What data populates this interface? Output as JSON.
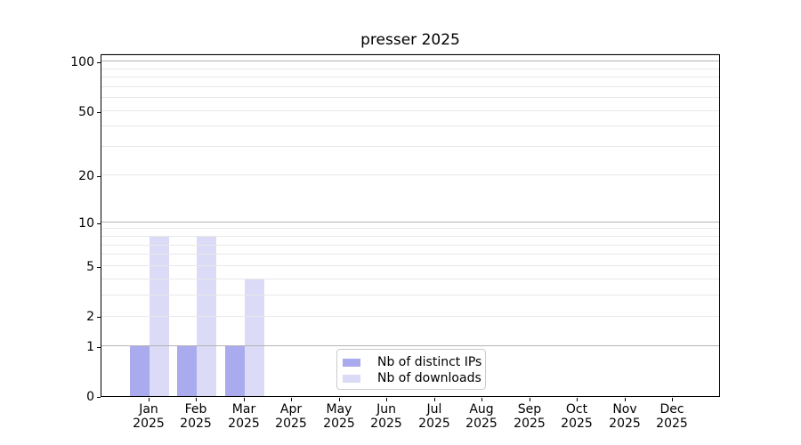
{
  "chart_data": {
    "type": "bar",
    "title": "presser 2025",
    "categories": [
      "Jan",
      "Feb",
      "Mar",
      "Apr",
      "May",
      "Jun",
      "Jul",
      "Aug",
      "Sep",
      "Oct",
      "Nov",
      "Dec"
    ],
    "x_tick_labels": [
      [
        "Jan",
        "2025"
      ],
      [
        "Feb",
        "2025"
      ],
      [
        "Mar",
        "2025"
      ],
      [
        "Apr",
        "2025"
      ],
      [
        "May",
        "2025"
      ],
      [
        "Jun",
        "2025"
      ],
      [
        "Jul",
        "2025"
      ],
      [
        "Aug",
        "2025"
      ],
      [
        "Sep",
        "2025"
      ],
      [
        "Oct",
        "2025"
      ],
      [
        "Nov",
        "2025"
      ],
      [
        "Dec",
        "2025"
      ]
    ],
    "series": [
      {
        "name": "Nb of distinct IPs",
        "color": "#aaaaee",
        "values": [
          1,
          1,
          1,
          0,
          0,
          0,
          0,
          0,
          0,
          0,
          0,
          0
        ]
      },
      {
        "name": "Nb of downloads",
        "color": "#dbdbf7",
        "values": [
          8,
          8,
          4,
          0,
          0,
          0,
          0,
          0,
          0,
          0,
          0,
          0
        ]
      }
    ],
    "xlabel": "",
    "ylabel": "",
    "y_axis": {
      "scale": "log1p",
      "ticks": [
        0,
        1,
        2,
        5,
        10,
        20,
        50,
        100
      ],
      "major_grid": [
        1,
        10,
        100
      ],
      "minor_grid": [
        2,
        3,
        4,
        5,
        6,
        7,
        8,
        9,
        20,
        30,
        40,
        50,
        60,
        70,
        80,
        90,
        110
      ],
      "ylim": [
        0,
        111.8
      ]
    },
    "legend": {
      "position": "lower center"
    },
    "colors": {
      "major_grid": "#b3b3b3",
      "minor_grid": "#e8e8e8",
      "spine": "#000000",
      "background": "#ffffff"
    }
  }
}
